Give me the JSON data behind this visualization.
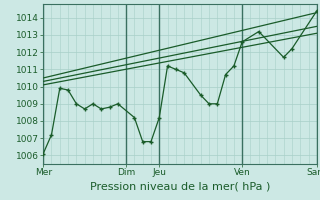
{
  "bg_color": "#cce8e4",
  "grid_color": "#a8cfc8",
  "line_color": "#1a5c2a",
  "dark_vline_color": "#3a7060",
  "xlabel": "Pression niveau de la mer( hPa )",
  "xlabel_fontsize": 8,
  "ylim": [
    1005.5,
    1014.8
  ],
  "yticks": [
    1006,
    1007,
    1008,
    1009,
    1010,
    1011,
    1012,
    1013,
    1014
  ],
  "tick_fontsize": 6.5,
  "main_x": [
    0,
    0.5,
    1.0,
    1.5,
    2.0,
    2.5,
    3.0,
    3.5,
    4.0,
    4.5,
    5.5,
    6.0,
    6.5,
    7.0,
    7.5,
    8.0,
    8.5,
    9.5,
    10.0,
    10.5,
    11.0,
    11.5,
    12.0,
    13.0,
    14.5,
    15.0,
    16.5
  ],
  "main_y": [
    1006.1,
    1007.2,
    1009.9,
    1009.8,
    1009.0,
    1008.7,
    1009.0,
    1008.7,
    1008.8,
    1009.0,
    1008.2,
    1006.8,
    1006.8,
    1008.2,
    1011.2,
    1011.0,
    1010.8,
    1009.5,
    1009.0,
    1009.0,
    1010.7,
    1011.2,
    1012.6,
    1013.2,
    1011.7,
    1012.2,
    1014.4
  ],
  "trend1_x": [
    0,
    16.5
  ],
  "trend1_y": [
    1010.1,
    1013.1
  ],
  "trend2_x": [
    0,
    16.5
  ],
  "trend2_y": [
    1010.3,
    1013.5
  ],
  "trend3_x": [
    0,
    16.5
  ],
  "trend3_y": [
    1010.5,
    1014.3
  ],
  "vlines_dark": [
    0,
    5.0,
    7.0,
    12.0,
    16.5
  ],
  "xtick_positions": [
    0,
    5.0,
    7.0,
    12.0,
    16.5
  ],
  "xtick_labels": [
    "Mer",
    "Dim",
    "Jeu",
    "Ven",
    "Sam"
  ],
  "xmin": 0,
  "xmax": 16.5
}
